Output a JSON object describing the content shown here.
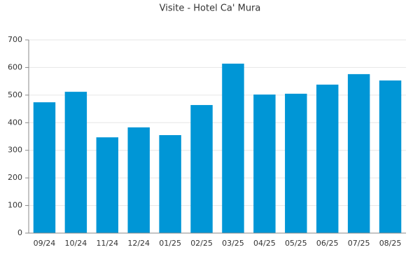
{
  "chart_data": {
    "type": "bar",
    "title": "Visite - Hotel Ca' Mura",
    "categories": [
      "09/24",
      "10/24",
      "11/24",
      "12/24",
      "01/25",
      "02/25",
      "03/25",
      "04/25",
      "05/25",
      "06/25",
      "07/25",
      "08/25"
    ],
    "values": [
      474,
      512,
      347,
      383,
      355,
      464,
      614,
      502,
      505,
      538,
      576,
      553
    ],
    "color": "#0096d6",
    "ylim": [
      0,
      700
    ],
    "yticks": [
      0,
      100,
      200,
      300,
      400,
      500,
      600,
      700
    ],
    "grid": true
  }
}
